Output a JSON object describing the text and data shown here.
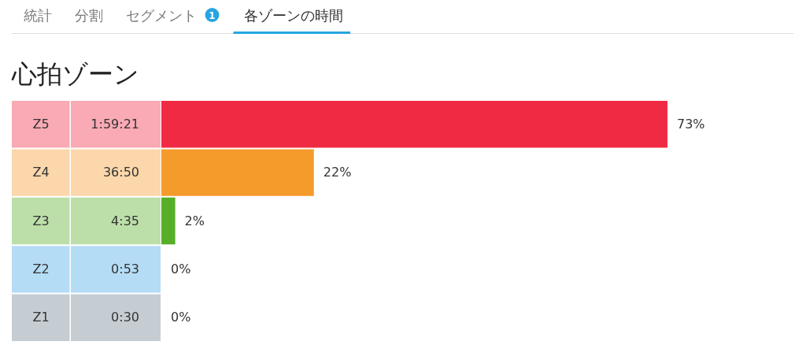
{
  "chart_data": [
    {
      "type": "other",
      "categories": [
        "統計",
        "分割",
        "セグメント",
        "各ゾーンの時間"
      ],
      "values": [
        null,
        null,
        1,
        null
      ],
      "data_labels": true,
      "colors": [
        null,
        null,
        null,
        "#27a5e0"
      ]
    },
    {
      "type": "bar",
      "orientation": "horizontal",
      "title": "心拍ゾーン",
      "categories": [
        "Z5",
        "Z4",
        "Z3",
        "Z2",
        "Z1"
      ],
      "values": [
        73,
        22,
        2,
        0,
        0
      ],
      "colors": [
        "#f12a43",
        "#f59b2c",
        "#57ae29",
        "#43a7e6",
        "#6e8291"
      ],
      "value_labels": [
        "73%",
        "22%",
        "2%",
        "0%",
        "0%"
      ],
      "annotations": [
        "1:59:21",
        "36:50",
        "4:35",
        "0:53",
        "0:30"
      ]
    }
  ]
}
